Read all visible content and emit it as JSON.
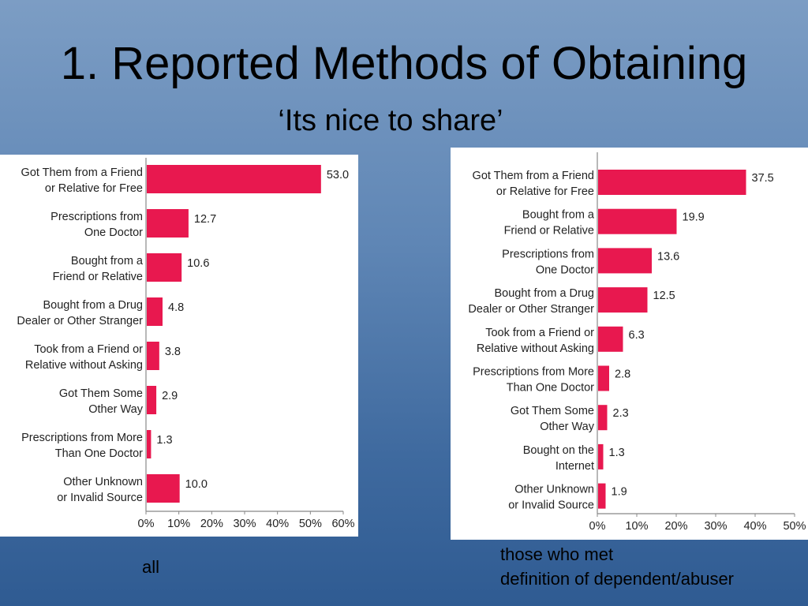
{
  "slide": {
    "title": "1. Reported Methods of Obtaining",
    "subtitle": "‘Its nice to share’"
  },
  "captions": {
    "left": "all",
    "right_line1": "those who met",
    "right_line2": "definition of dependent/abuser"
  },
  "colors": {
    "bar": "#e8184f",
    "axis": "#888888"
  },
  "chart_data": [
    {
      "type": "bar",
      "orientation": "horizontal",
      "categories": [
        [
          "Got Them from a Friend",
          "or Relative for Free"
        ],
        [
          "Prescriptions from",
          "One Doctor"
        ],
        [
          "Bought from a",
          "Friend or Relative"
        ],
        [
          "Bought from a Drug",
          "Dealer or Other Stranger"
        ],
        [
          "Took from a Friend or",
          "Relative without Asking"
        ],
        [
          "Got Them Some",
          "Other Way"
        ],
        [
          "Prescriptions from More",
          "Than One Doctor"
        ],
        [
          "Other Unknown",
          "or Invalid Source"
        ]
      ],
      "values": [
        53.0,
        12.7,
        10.6,
        4.8,
        3.8,
        2.9,
        1.3,
        10.0
      ],
      "value_labels": [
        "53.0",
        "12.7",
        "10.6",
        "4.8",
        "3.8",
        "2.9",
        "1.3",
        "10.0"
      ],
      "xlim": [
        0,
        60
      ],
      "xticks": [
        "0%",
        "10%",
        "20%",
        "30%",
        "40%",
        "50%",
        "60%"
      ],
      "grid": false
    },
    {
      "type": "bar",
      "orientation": "horizontal",
      "categories": [
        [
          "Got Them from a Friend",
          "or Relative for Free"
        ],
        [
          "Bought from a",
          "Friend or Relative"
        ],
        [
          "Prescriptions from",
          "One Doctor"
        ],
        [
          "Bought from a Drug",
          "Dealer or Other Stranger"
        ],
        [
          "Took from a Friend or",
          "Relative without Asking"
        ],
        [
          "Prescriptions from More",
          "Than One Doctor"
        ],
        [
          "Got Them Some",
          "Other Way"
        ],
        [
          "Bought on the",
          "Internet"
        ],
        [
          "Other Unknown",
          "or Invalid Source"
        ]
      ],
      "values": [
        37.5,
        19.9,
        13.6,
        12.5,
        6.3,
        2.8,
        2.3,
        1.3,
        1.9
      ],
      "value_labels": [
        "37.5",
        "19.9",
        "13.6",
        "12.5",
        "6.3",
        "2.8",
        "2.3",
        "1.3",
        "1.9"
      ],
      "xlim": [
        0,
        50
      ],
      "xticks": [
        "0%",
        "10%",
        "20%",
        "30%",
        "40%",
        "50%"
      ],
      "grid": false
    }
  ]
}
